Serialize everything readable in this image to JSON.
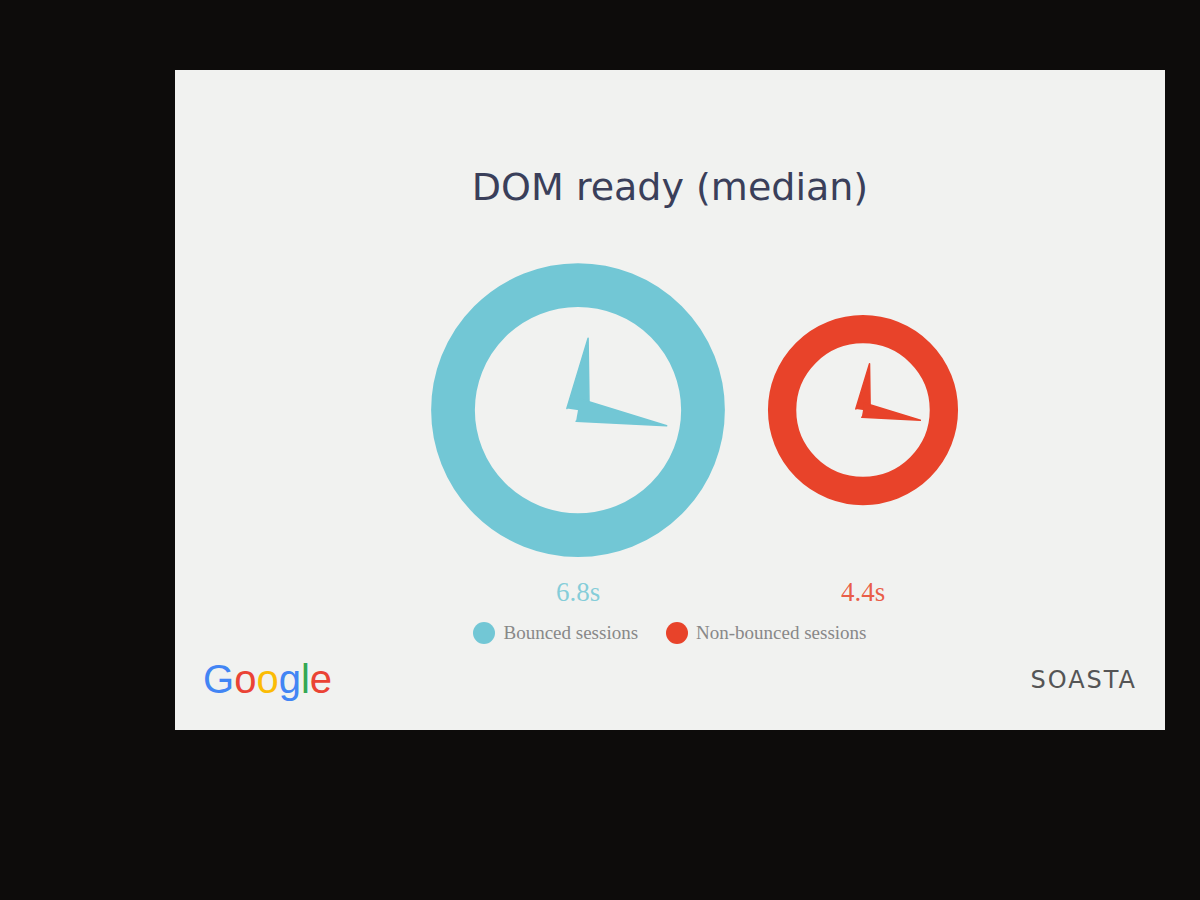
{
  "chart_data": {
    "type": "bubble",
    "title": "DOM ready (median)",
    "categories": [
      "Bounced sessions",
      "Non-bounced sessions"
    ],
    "values": [
      6.8,
      4.4
    ],
    "value_labels": [
      "6.8s",
      "4.4s"
    ],
    "colors": [
      "#72c7d5",
      "#e8432a"
    ],
    "data_labels": true,
    "legend": "bottom",
    "tick_labels": false,
    "annotations": [
      "Google",
      "SOASTA"
    ]
  }
}
